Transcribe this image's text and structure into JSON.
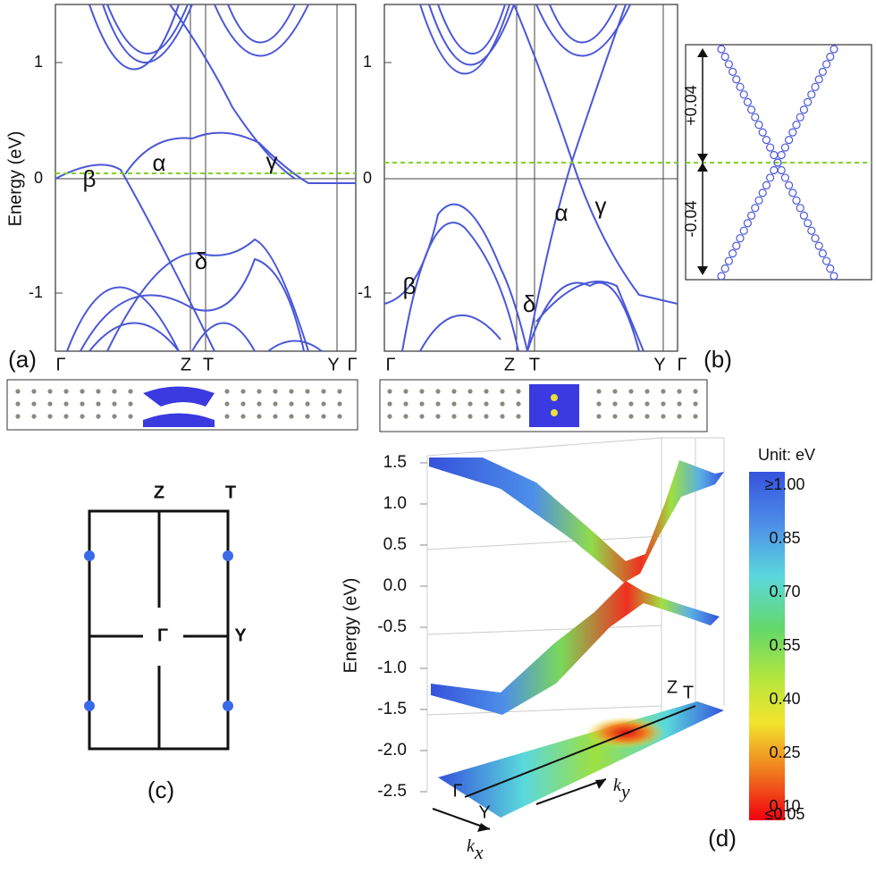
{
  "panel_a": {
    "label": "(a)",
    "y_axis_label": "Energy (eV)",
    "yticks": [
      "1",
      "0",
      "-1"
    ],
    "k_labels": [
      "Γ",
      "Z",
      "T",
      "Y",
      "Γ"
    ],
    "band_labels": [
      "β",
      "α",
      "γ",
      "δ"
    ]
  },
  "panel_b": {
    "label": "(b)",
    "yticks": [
      "1",
      "0",
      "-1"
    ],
    "k_labels": [
      "Γ",
      "Z",
      "T",
      "Y",
      "Γ"
    ],
    "band_labels": [
      "α",
      "γ",
      "β",
      "δ"
    ],
    "inset_labels": [
      "+0.04",
      "-0.04"
    ]
  },
  "panel_c": {
    "label": "(c)",
    "points": [
      "Z",
      "T",
      "Γ",
      "Y"
    ]
  },
  "panel_d": {
    "label": "(d)",
    "y_axis_label": "Energy (eV)",
    "yticks": [
      "1.5",
      "1.0",
      "0.5",
      "0.0",
      "-0.5",
      "-1.0",
      "-1.5",
      "-2.0",
      "-2.5"
    ],
    "colorbar_title": "Unit: eV",
    "colorbar_ticks": [
      "≥1.00",
      "0.85",
      "0.70",
      "0.55",
      "0.40",
      "0.25",
      "0.10",
      "≤0.05"
    ],
    "k_labels": [
      "Γ",
      "Y",
      "Z",
      "T"
    ],
    "k_axes": [
      {
        "base": "k",
        "sub": "x"
      },
      {
        "base": "k",
        "sub": "y"
      }
    ]
  }
}
